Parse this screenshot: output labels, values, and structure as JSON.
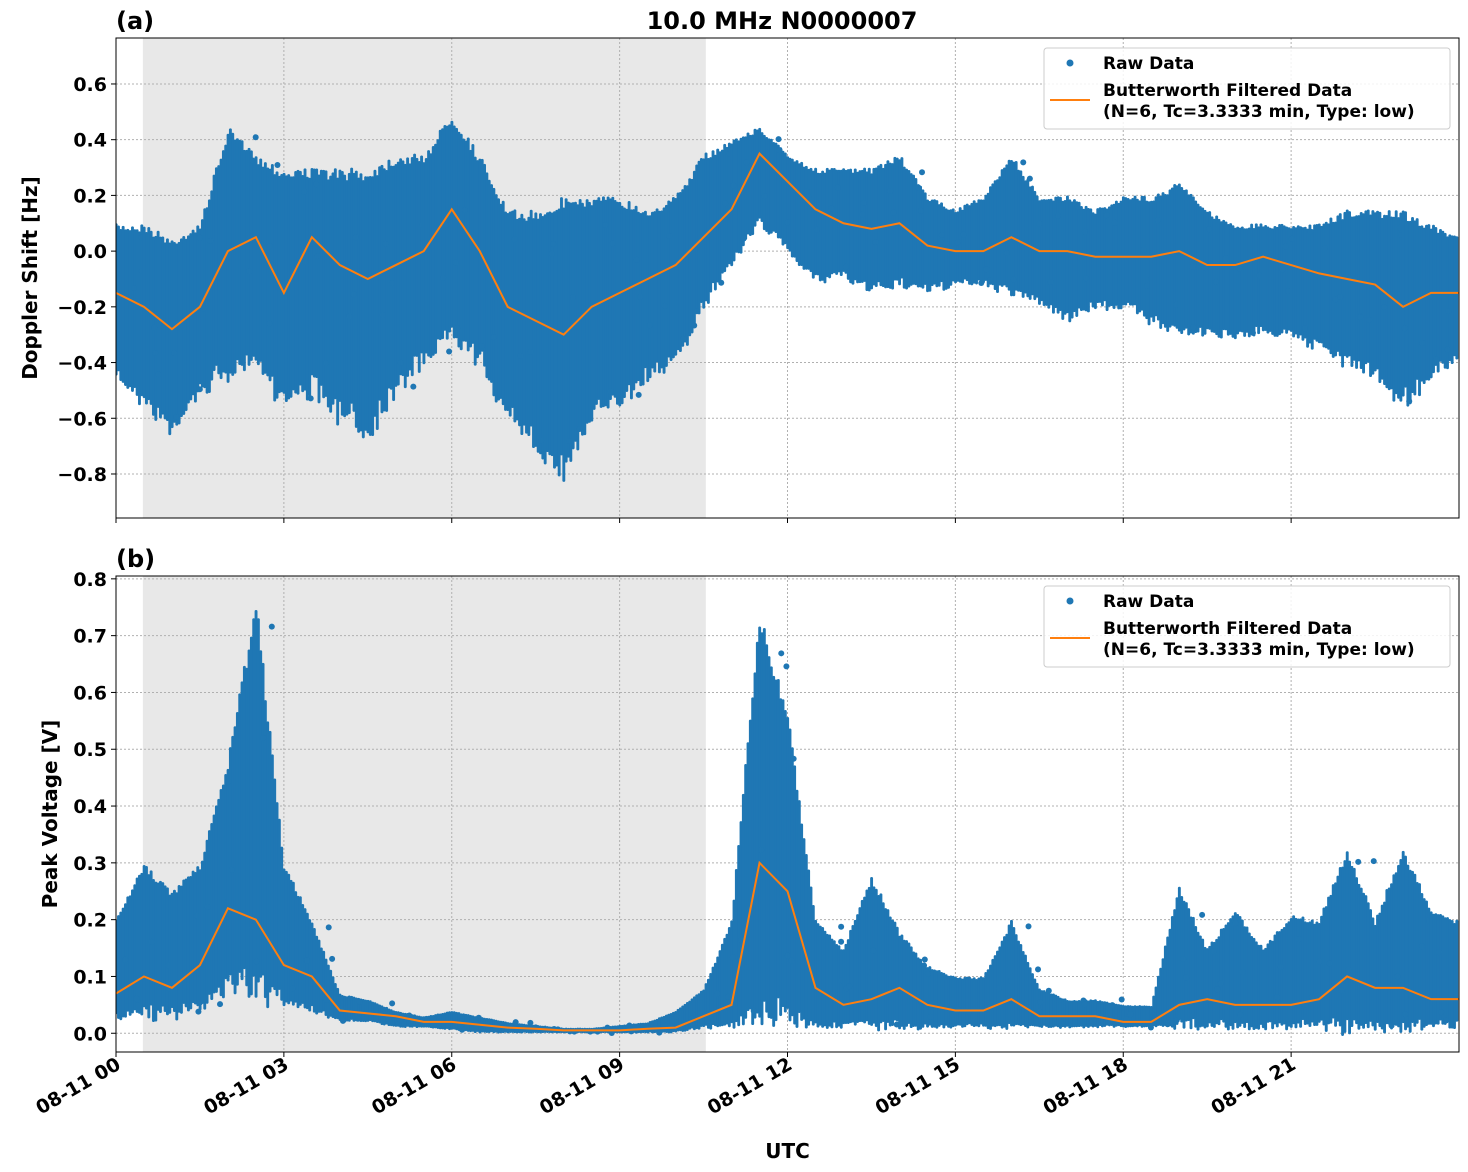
{
  "title": "10.0 MHz N0000007",
  "colors": {
    "raw": "#1f77b4",
    "filtered": "#ff7f0e",
    "shade": "#e8e8e8",
    "grid": "#b0b0b0"
  },
  "chart_data": [
    {
      "type": "line",
      "panel_label": "(a)",
      "ylabel": "Doppler Shift [Hz]",
      "xlabel": "",
      "xlim_hours": [
        0,
        24
      ],
      "ylim": [
        -0.958,
        0.765
      ],
      "yticks": [
        0.6,
        0.4,
        0.2,
        0.0,
        -0.2,
        -0.4,
        -0.6,
        -0.8
      ],
      "ytick_labels": [
        "0.6",
        "0.4",
        "0.2",
        "0.0",
        "−0.2",
        "−0.4",
        "−0.6",
        "−0.8"
      ],
      "grid": true,
      "shaded_interval_hours": [
        0.48,
        10.54
      ],
      "legend": {
        "placement": "top-right",
        "entries": [
          "Raw Data",
          "Butterworth Filtered Data",
          "(N=6, Tc=3.3333 min, Type: low)"
        ]
      },
      "x_hours": [
        0,
        0.5,
        1,
        1.5,
        2,
        2.5,
        3,
        3.5,
        4,
        4.5,
        5,
        5.5,
        6,
        6.5,
        7,
        7.5,
        8,
        8.5,
        9,
        9.5,
        10,
        10.5,
        11,
        11.5,
        12,
        12.5,
        13,
        13.5,
        14,
        14.5,
        15,
        15.5,
        16,
        16.5,
        17,
        17.5,
        18,
        18.5,
        19,
        19.5,
        20,
        20.5,
        21,
        21.5,
        22,
        22.5,
        23,
        23.5,
        24
      ],
      "series": [
        {
          "name": "Butterworth Filtered Data",
          "values": [
            -0.15,
            -0.2,
            -0.28,
            -0.2,
            0.0,
            0.05,
            -0.15,
            0.05,
            -0.05,
            -0.1,
            -0.05,
            0.0,
            0.15,
            0.0,
            -0.2,
            -0.25,
            -0.3,
            -0.2,
            -0.15,
            -0.1,
            -0.05,
            0.05,
            0.15,
            0.35,
            0.25,
            0.15,
            0.1,
            0.08,
            0.1,
            0.02,
            0.0,
            0.0,
            0.05,
            0.0,
            0.0,
            -0.02,
            -0.02,
            -0.02,
            0.0,
            -0.05,
            -0.05,
            -0.02,
            -0.05,
            -0.08,
            -0.1,
            -0.12,
            -0.2,
            -0.15,
            -0.15
          ]
        },
        {
          "name": "Raw Data",
          "low": [
            -0.45,
            -0.55,
            -0.65,
            -0.5,
            -0.45,
            -0.4,
            -0.55,
            -0.5,
            -0.6,
            -0.65,
            -0.5,
            -0.4,
            -0.3,
            -0.4,
            -0.6,
            -0.7,
            -0.8,
            -0.6,
            -0.55,
            -0.45,
            -0.4,
            -0.2,
            -0.05,
            0.1,
            0.0,
            -0.1,
            -0.1,
            -0.15,
            -0.12,
            -0.15,
            -0.12,
            -0.12,
            -0.15,
            -0.18,
            -0.25,
            -0.2,
            -0.2,
            -0.25,
            -0.3,
            -0.3,
            -0.3,
            -0.3,
            -0.3,
            -0.35,
            -0.4,
            -0.45,
            -0.55,
            -0.45,
            -0.4
          ],
          "high": [
            0.1,
            0.1,
            0.05,
            0.1,
            0.45,
            0.35,
            0.3,
            0.3,
            0.3,
            0.3,
            0.35,
            0.35,
            0.5,
            0.35,
            0.15,
            0.15,
            0.2,
            0.2,
            0.2,
            0.15,
            0.2,
            0.35,
            0.4,
            0.45,
            0.35,
            0.3,
            0.3,
            0.3,
            0.35,
            0.2,
            0.15,
            0.2,
            0.35,
            0.2,
            0.2,
            0.15,
            0.2,
            0.2,
            0.25,
            0.15,
            0.1,
            0.1,
            0.1,
            0.1,
            0.15,
            0.15,
            0.15,
            0.1,
            0.05
          ]
        }
      ]
    },
    {
      "type": "line",
      "panel_label": "(b)",
      "ylabel": "Peak Voltage [V]",
      "xlabel": "UTC",
      "xlim_hours": [
        0,
        24
      ],
      "ylim": [
        -0.033,
        0.805
      ],
      "yticks": [
        0.8,
        0.7,
        0.6,
        0.5,
        0.4,
        0.3,
        0.2,
        0.1,
        0.0
      ],
      "ytick_labels": [
        "0.8",
        "0.7",
        "0.6",
        "0.5",
        "0.4",
        "0.3",
        "0.2",
        "0.1",
        "0.0"
      ],
      "xticks_hours": [
        0,
        3,
        6,
        9,
        12,
        15,
        18,
        21
      ],
      "xtick_labels": [
        "08-11 00",
        "08-11 03",
        "08-11 06",
        "08-11 09",
        "08-11 12",
        "08-11 15",
        "08-11 18",
        "08-11 21"
      ],
      "grid": true,
      "shaded_interval_hours": [
        0.48,
        10.54
      ],
      "legend": {
        "placement": "top-right",
        "entries": [
          "Raw Data",
          "Butterworth Filtered Data",
          "(N=6, Tc=3.3333 min, Type: low)"
        ]
      },
      "x_hours": [
        0,
        0.5,
        1,
        1.5,
        2,
        2.5,
        3,
        3.5,
        4,
        4.5,
        5,
        5.5,
        6,
        6.5,
        7,
        7.5,
        8,
        8.5,
        9,
        9.5,
        10,
        10.5,
        11,
        11.5,
        12,
        12.5,
        13,
        13.5,
        14,
        14.5,
        15,
        15.5,
        16,
        16.5,
        17,
        17.5,
        18,
        18.5,
        19,
        19.5,
        20,
        20.5,
        21,
        21.5,
        22,
        22.5,
        23,
        23.5,
        24
      ],
      "series": [
        {
          "name": "Butterworth Filtered Data",
          "values": [
            0.07,
            0.1,
            0.08,
            0.12,
            0.22,
            0.2,
            0.12,
            0.1,
            0.04,
            0.035,
            0.03,
            0.02,
            0.02,
            0.015,
            0.01,
            0.008,
            0.005,
            0.005,
            0.005,
            0.008,
            0.01,
            0.03,
            0.05,
            0.3,
            0.25,
            0.08,
            0.05,
            0.06,
            0.08,
            0.05,
            0.04,
            0.04,
            0.06,
            0.03,
            0.03,
            0.03,
            0.02,
            0.02,
            0.05,
            0.06,
            0.05,
            0.05,
            0.05,
            0.06,
            0.1,
            0.08,
            0.08,
            0.06,
            0.06
          ]
        },
        {
          "name": "Raw Data",
          "low": [
            0.02,
            0.03,
            0.03,
            0.04,
            0.08,
            0.07,
            0.05,
            0.04,
            0.02,
            0.02,
            0.01,
            0.01,
            0.005,
            0,
            0,
            0,
            0,
            0,
            0,
            0,
            0,
            0.01,
            0.01,
            0.02,
            0.02,
            0.01,
            0.01,
            0.01,
            0.01,
            0.01,
            0.01,
            0.01,
            0.01,
            0.01,
            0.01,
            0.01,
            0.01,
            0.01,
            0.01,
            0.01,
            0.01,
            0.01,
            0.01,
            0.01,
            0.01,
            0.01,
            0.01,
            0.01,
            0.01
          ],
          "high": [
            0.2,
            0.3,
            0.25,
            0.3,
            0.48,
            0.77,
            0.3,
            0.2,
            0.07,
            0.06,
            0.04,
            0.03,
            0.04,
            0.03,
            0.02,
            0.015,
            0.01,
            0.01,
            0.015,
            0.02,
            0.04,
            0.08,
            0.2,
            0.75,
            0.57,
            0.2,
            0.15,
            0.28,
            0.18,
            0.12,
            0.1,
            0.1,
            0.2,
            0.08,
            0.06,
            0.06,
            0.05,
            0.05,
            0.26,
            0.15,
            0.22,
            0.15,
            0.21,
            0.2,
            0.33,
            0.2,
            0.33,
            0.22,
            0.2
          ]
        }
      ]
    }
  ]
}
